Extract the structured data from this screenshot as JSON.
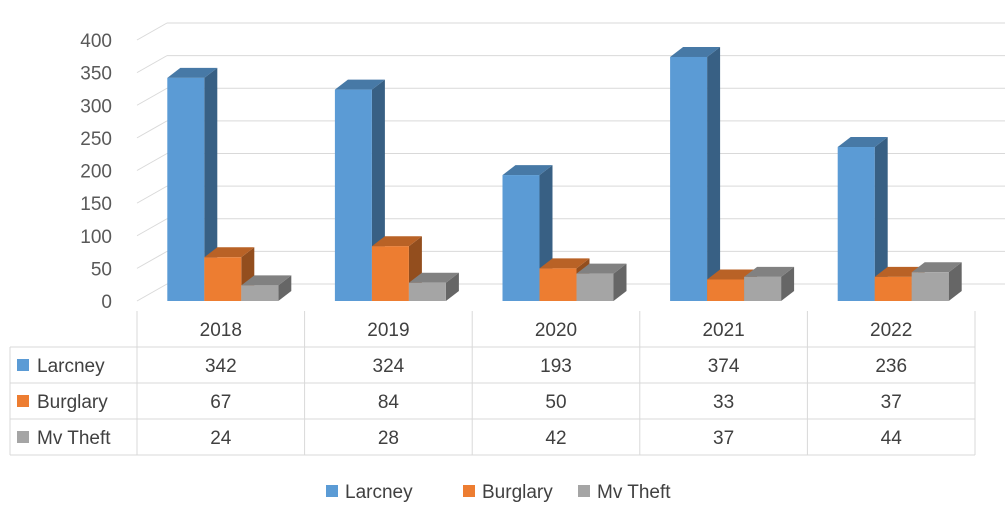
{
  "chart_data": {
    "type": "bar",
    "title": "",
    "xlabel": "",
    "ylabel": "",
    "categories": [
      "2018",
      "2019",
      "2020",
      "2021",
      "2022"
    ],
    "series": [
      {
        "name": "Larcney",
        "color": "#5B9BD5",
        "values": [
          342,
          324,
          193,
          374,
          236
        ]
      },
      {
        "name": "Burglary",
        "color": "#ED7D31",
        "values": [
          67,
          84,
          50,
          33,
          37
        ]
      },
      {
        "name": "Mv Theft",
        "color": "#A5A5A5",
        "values": [
          24,
          28,
          42,
          37,
          44
        ]
      }
    ],
    "ylim": [
      0,
      400
    ],
    "yticks": [
      0,
      50,
      100,
      150,
      200,
      250,
      300,
      350,
      400
    ],
    "grid": true,
    "style": "3d-clustered-column",
    "data_table": true,
    "legend": "bottom"
  }
}
